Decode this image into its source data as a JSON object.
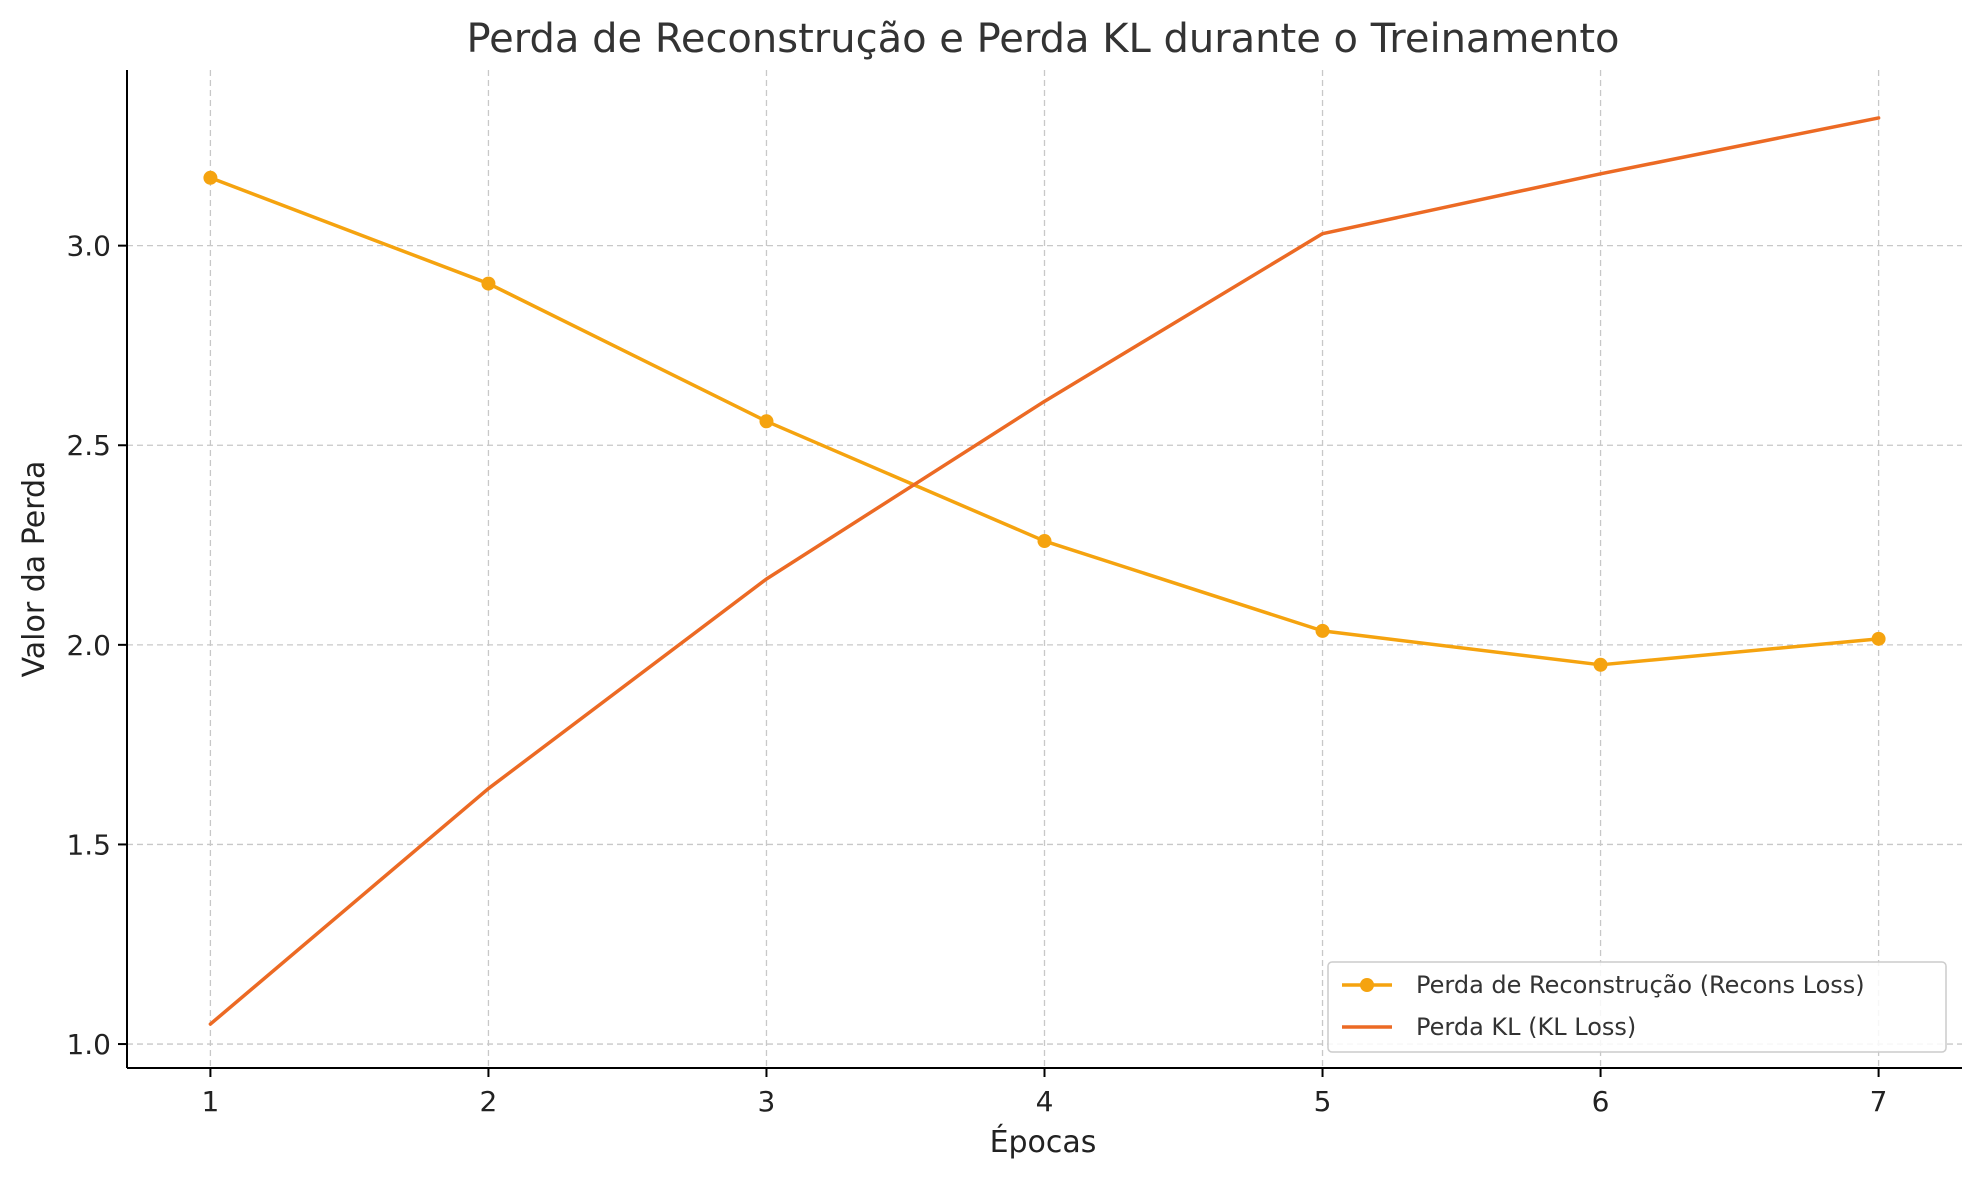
{
  "chart_data": {
    "type": "line",
    "title": "Perda de Reconstrução e Perda KL durante o Treinamento",
    "xlabel": "Épocas",
    "ylabel": "Valor da Perda",
    "x": [
      1,
      2,
      3,
      4,
      5,
      6,
      7
    ],
    "xlim": [
      0.7,
      7.3
    ],
    "ylim": [
      0.94,
      3.44
    ],
    "xticks": [
      1,
      2,
      3,
      4,
      5,
      6,
      7
    ],
    "yticks": [
      1.0,
      1.5,
      2.0,
      2.5,
      3.0
    ],
    "ytick_labels": [
      "1.0",
      "1.5",
      "2.0",
      "2.5",
      "3.0"
    ],
    "grid": true,
    "legend_position": "lower-right",
    "series": [
      {
        "name": "Perda de Reconstrução (Recons Loss)",
        "values": [
          3.17,
          2.905,
          2.56,
          2.26,
          2.035,
          1.95,
          2.015
        ],
        "color": "#f5a30f",
        "marker": "circle"
      },
      {
        "name": "Perda KL (KL Loss)",
        "values": [
          1.05,
          1.64,
          2.165,
          2.61,
          3.03,
          3.18,
          3.32
        ],
        "color": "#ec6a24",
        "marker": "none"
      }
    ]
  }
}
